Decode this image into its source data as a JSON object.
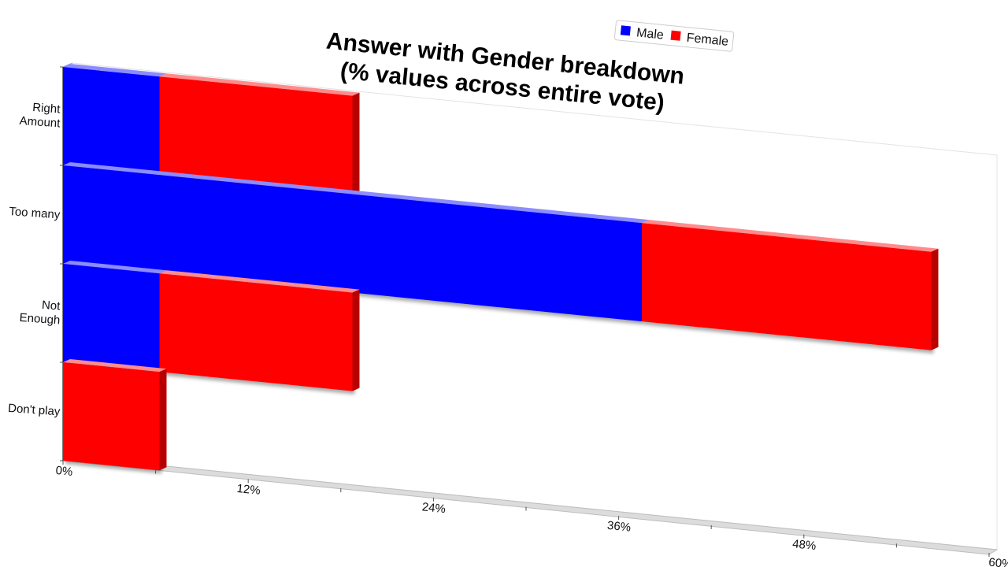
{
  "chart_data": {
    "type": "bar",
    "orientation": "horizontal",
    "stacked": true,
    "title": "Answer with Gender breakdown",
    "subtitle": "(% values across entire vote)",
    "categories": [
      "Right Amount",
      "Too many",
      "Not Enough",
      "Don't play"
    ],
    "category_label_lines": [
      [
        "Right",
        "Amount"
      ],
      [
        "Too many"
      ],
      [
        "Not",
        "Enough"
      ],
      [
        "Don't play"
      ]
    ],
    "series": [
      {
        "name": "Male",
        "color": "#0000ff",
        "values": [
          6.25,
          37.5,
          6.25,
          0
        ]
      },
      {
        "name": "Female",
        "color": "#ff0000",
        "values": [
          12.5,
          18.75,
          12.5,
          6.25
        ]
      }
    ],
    "xlim": [
      0,
      60
    ],
    "x_ticks": [
      "0%",
      "12%",
      "24%",
      "36%",
      "48%",
      "60%"
    ],
    "grid": false,
    "legend_position": "top-right",
    "three_d": true
  }
}
